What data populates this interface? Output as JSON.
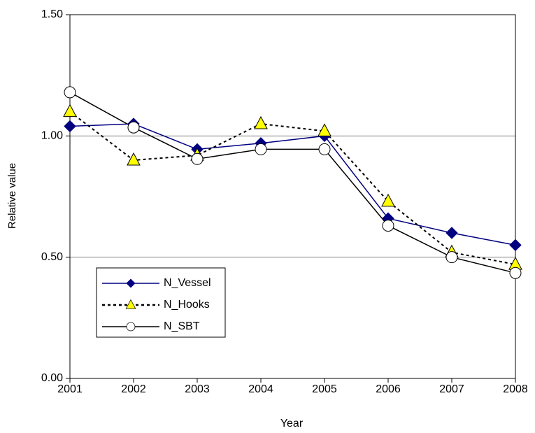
{
  "chart_data": {
    "type": "line",
    "x_label": "Year",
    "y_label": "Relative value",
    "x": [
      2001,
      2002,
      2003,
      2004,
      2005,
      2006,
      2007,
      2008
    ],
    "xlim": [
      2001,
      2008
    ],
    "xticks": [
      2001,
      2002,
      2003,
      2004,
      2005,
      2006,
      2007,
      2008
    ],
    "ylim": [
      0,
      1.5
    ],
    "yticks": [
      {
        "value": 0,
        "label": "0.00"
      },
      {
        "value": 0.5,
        "label": "0.50"
      },
      {
        "value": 1,
        "label": "1.00"
      },
      {
        "value": 1.5,
        "label": "1.50"
      }
    ],
    "grid": true,
    "legend": "lower left",
    "series": [
      {
        "name": "N_Vessel",
        "color": "#000080",
        "marker": "diamond",
        "marker_color": "#000080",
        "dashed": false,
        "values": [
          1.04,
          1.05,
          0.945,
          0.97,
          1.0,
          0.66,
          0.6,
          0.55
        ]
      },
      {
        "name": "N_Hooks",
        "color": "#000000",
        "marker": "triangle",
        "marker_color": "#ffff00",
        "dashed": true,
        "values": [
          1.1,
          0.9,
          0.92,
          1.05,
          1.02,
          0.73,
          0.52,
          0.47
        ]
      },
      {
        "name": "N_SBT",
        "color": "#000000",
        "marker": "circle",
        "marker_color": "#ffffff",
        "dashed": false,
        "values": [
          1.18,
          1.035,
          0.905,
          0.945,
          0.945,
          0.63,
          0.5,
          0.435
        ]
      }
    ]
  }
}
